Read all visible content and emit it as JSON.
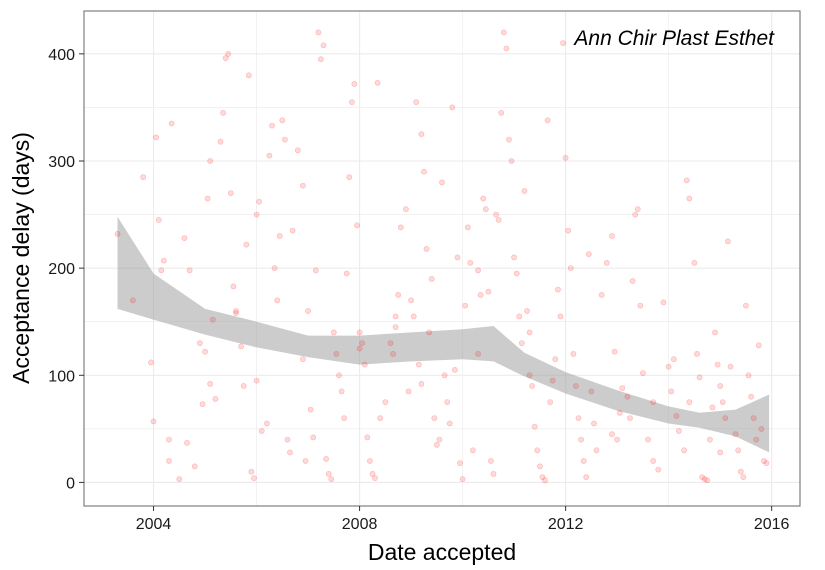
{
  "chart_data": {
    "type": "scatter",
    "title": "",
    "xlabel": "Date accepted",
    "ylabel": "Acceptance delay (days)",
    "annotation": "Ann Chir Plast Esthet",
    "xlim": [
      2002.65,
      2016.55
    ],
    "ylim": [
      -22,
      440
    ],
    "x_ticks": [
      2004,
      2008,
      2012,
      2016
    ],
    "x_tick_labels": [
      "2004",
      "2008",
      "2012",
      "2016"
    ],
    "y_ticks": [
      0,
      100,
      200,
      300,
      400
    ],
    "y_tick_labels": [
      "0",
      "100",
      "200",
      "300",
      "400"
    ],
    "grid": true,
    "colors": {
      "points": "#ff0000",
      "band": "#999999",
      "panel_border": "#7f7f7f",
      "grid": "#ebebeb"
    },
    "point_opacity": 0.15,
    "smooth_band": {
      "x": [
        2003.3,
        2004.0,
        2005.0,
        2006.0,
        2007.0,
        2008.0,
        2009.0,
        2010.0,
        2010.6,
        2011.2,
        2012.0,
        2013.0,
        2014.0,
        2014.6,
        2015.3,
        2015.95
      ],
      "lower": [
        162,
        152,
        138,
        126,
        117,
        110,
        113,
        115,
        113,
        99,
        83,
        67,
        55,
        51,
        43,
        28
      ],
      "upper": [
        248,
        195,
        162,
        150,
        137,
        137,
        140,
        143,
        146,
        121,
        103,
        86,
        71,
        65,
        68,
        82
      ]
    },
    "points": [
      [
        2003.3,
        232
      ],
      [
        2003.6,
        170
      ],
      [
        2003.8,
        285
      ],
      [
        2003.95,
        112
      ],
      [
        2004.0,
        57
      ],
      [
        2004.05,
        322
      ],
      [
        2004.1,
        245
      ],
      [
        2004.15,
        198
      ],
      [
        2004.2,
        207
      ],
      [
        2004.3,
        40
      ],
      [
        2004.3,
        20
      ],
      [
        2004.35,
        335
      ],
      [
        2004.5,
        3
      ],
      [
        2004.6,
        228
      ],
      [
        2004.65,
        37
      ],
      [
        2004.7,
        198
      ],
      [
        2004.8,
        15
      ],
      [
        2004.9,
        130
      ],
      [
        2004.95,
        73
      ],
      [
        2005.0,
        122
      ],
      [
        2005.05,
        265
      ],
      [
        2005.1,
        300
      ],
      [
        2005.15,
        152
      ],
      [
        2005.2,
        78
      ],
      [
        2005.3,
        318
      ],
      [
        2005.35,
        345
      ],
      [
        2005.4,
        396
      ],
      [
        2005.45,
        400
      ],
      [
        2005.5,
        270
      ],
      [
        2005.55,
        183
      ],
      [
        2005.6,
        160
      ],
      [
        2005.7,
        127
      ],
      [
        2005.75,
        90
      ],
      [
        2005.8,
        222
      ],
      [
        2005.85,
        380
      ],
      [
        2005.9,
        10
      ],
      [
        2005.95,
        4
      ],
      [
        2006.0,
        250
      ],
      [
        2006.05,
        262
      ],
      [
        2006.1,
        48
      ],
      [
        2006.2,
        55
      ],
      [
        2006.25,
        305
      ],
      [
        2006.3,
        333
      ],
      [
        2006.35,
        200
      ],
      [
        2006.4,
        170
      ],
      [
        2006.45,
        230
      ],
      [
        2006.5,
        338
      ],
      [
        2006.55,
        320
      ],
      [
        2006.6,
        40
      ],
      [
        2006.65,
        28
      ],
      [
        2006.7,
        235
      ],
      [
        2006.8,
        310
      ],
      [
        2006.9,
        277
      ],
      [
        2006.95,
        20
      ],
      [
        2007.0,
        160
      ],
      [
        2007.05,
        68
      ],
      [
        2007.1,
        42
      ],
      [
        2007.15,
        198
      ],
      [
        2007.2,
        420
      ],
      [
        2007.25,
        395
      ],
      [
        2007.3,
        408
      ],
      [
        2007.35,
        22
      ],
      [
        2007.4,
        8
      ],
      [
        2007.45,
        3
      ],
      [
        2007.5,
        140
      ],
      [
        2007.55,
        120
      ],
      [
        2007.6,
        100
      ],
      [
        2007.65,
        85
      ],
      [
        2007.7,
        60
      ],
      [
        2007.75,
        195
      ],
      [
        2007.8,
        285
      ],
      [
        2007.85,
        355
      ],
      [
        2007.9,
        372
      ],
      [
        2007.95,
        240
      ],
      [
        2008.0,
        140
      ],
      [
        2008.05,
        130
      ],
      [
        2008.1,
        110
      ],
      [
        2008.15,
        42
      ],
      [
        2008.2,
        20
      ],
      [
        2008.25,
        8
      ],
      [
        2008.3,
        4
      ],
      [
        2008.35,
        373
      ],
      [
        2008.4,
        60
      ],
      [
        2008.5,
        75
      ],
      [
        2008.6,
        130
      ],
      [
        2008.65,
        120
      ],
      [
        2008.7,
        155
      ],
      [
        2008.75,
        175
      ],
      [
        2008.8,
        238
      ],
      [
        2008.9,
        255
      ],
      [
        2008.95,
        85
      ],
      [
        2009.0,
        170
      ],
      [
        2009.05,
        155
      ],
      [
        2009.1,
        355
      ],
      [
        2009.15,
        110
      ],
      [
        2009.2,
        325
      ],
      [
        2009.25,
        290
      ],
      [
        2009.3,
        218
      ],
      [
        2009.35,
        140
      ],
      [
        2009.4,
        190
      ],
      [
        2009.45,
        60
      ],
      [
        2009.5,
        35
      ],
      [
        2009.55,
        40
      ],
      [
        2009.6,
        280
      ],
      [
        2009.65,
        100
      ],
      [
        2009.7,
        75
      ],
      [
        2009.75,
        55
      ],
      [
        2009.8,
        350
      ],
      [
        2009.85,
        105
      ],
      [
        2009.9,
        210
      ],
      [
        2009.95,
        18
      ],
      [
        2010.0,
        3
      ],
      [
        2010.05,
        165
      ],
      [
        2010.1,
        238
      ],
      [
        2010.15,
        205
      ],
      [
        2010.2,
        30
      ],
      [
        2010.3,
        198
      ],
      [
        2010.35,
        175
      ],
      [
        2010.4,
        265
      ],
      [
        2010.45,
        255
      ],
      [
        2010.5,
        178
      ],
      [
        2010.55,
        20
      ],
      [
        2010.6,
        8
      ],
      [
        2010.65,
        250
      ],
      [
        2010.7,
        245
      ],
      [
        2010.75,
        345
      ],
      [
        2010.8,
        420
      ],
      [
        2010.85,
        405
      ],
      [
        2010.9,
        320
      ],
      [
        2010.95,
        300
      ],
      [
        2011.0,
        210
      ],
      [
        2011.05,
        195
      ],
      [
        2011.1,
        155
      ],
      [
        2011.15,
        130
      ],
      [
        2011.2,
        272
      ],
      [
        2011.25,
        160
      ],
      [
        2011.3,
        100
      ],
      [
        2011.35,
        90
      ],
      [
        2011.4,
        52
      ],
      [
        2011.45,
        30
      ],
      [
        2011.5,
        15
      ],
      [
        2011.55,
        5
      ],
      [
        2011.6,
        2
      ],
      [
        2011.65,
        338
      ],
      [
        2011.7,
        75
      ],
      [
        2011.75,
        95
      ],
      [
        2011.8,
        115
      ],
      [
        2011.85,
        180
      ],
      [
        2011.9,
        155
      ],
      [
        2011.95,
        410
      ],
      [
        2012.0,
        303
      ],
      [
        2012.05,
        235
      ],
      [
        2012.1,
        200
      ],
      [
        2012.15,
        120
      ],
      [
        2012.2,
        90
      ],
      [
        2012.25,
        60
      ],
      [
        2012.3,
        40
      ],
      [
        2012.35,
        20
      ],
      [
        2012.4,
        5
      ],
      [
        2012.45,
        213
      ],
      [
        2012.5,
        85
      ],
      [
        2012.55,
        55
      ],
      [
        2012.6,
        30
      ],
      [
        2012.7,
        175
      ],
      [
        2012.8,
        205
      ],
      [
        2012.9,
        230
      ],
      [
        2012.95,
        122
      ],
      [
        2013.0,
        40
      ],
      [
        2013.05,
        65
      ],
      [
        2013.1,
        88
      ],
      [
        2013.2,
        80
      ],
      [
        2013.25,
        60
      ],
      [
        2013.3,
        188
      ],
      [
        2013.35,
        250
      ],
      [
        2013.4,
        255
      ],
      [
        2013.45,
        165
      ],
      [
        2013.5,
        102
      ],
      [
        2013.6,
        40
      ],
      [
        2013.7,
        20
      ],
      [
        2013.8,
        12
      ],
      [
        2013.9,
        168
      ],
      [
        2014.0,
        108
      ],
      [
        2014.05,
        85
      ],
      [
        2014.1,
        115
      ],
      [
        2014.15,
        62
      ],
      [
        2014.2,
        48
      ],
      [
        2014.3,
        30
      ],
      [
        2014.35,
        282
      ],
      [
        2014.4,
        265
      ],
      [
        2014.5,
        205
      ],
      [
        2014.55,
        120
      ],
      [
        2014.6,
        98
      ],
      [
        2014.65,
        5
      ],
      [
        2014.7,
        3
      ],
      [
        2014.75,
        2
      ],
      [
        2014.8,
        40
      ],
      [
        2014.85,
        70
      ],
      [
        2014.9,
        140
      ],
      [
        2014.95,
        110
      ],
      [
        2015.0,
        90
      ],
      [
        2015.05,
        75
      ],
      [
        2015.1,
        60
      ],
      [
        2015.15,
        225
      ],
      [
        2015.2,
        108
      ],
      [
        2015.3,
        45
      ],
      [
        2015.35,
        30
      ],
      [
        2015.4,
        10
      ],
      [
        2015.45,
        5
      ],
      [
        2015.5,
        165
      ],
      [
        2015.55,
        100
      ],
      [
        2015.6,
        80
      ],
      [
        2015.65,
        60
      ],
      [
        2015.7,
        40
      ],
      [
        2015.75,
        128
      ],
      [
        2015.8,
        50
      ],
      [
        2015.85,
        20
      ],
      [
        2015.9,
        18
      ],
      [
        2005.1,
        92
      ],
      [
        2006.0,
        95
      ],
      [
        2006.9,
        115
      ],
      [
        2008.7,
        145
      ],
      [
        2010.3,
        120
      ],
      [
        2011.3,
        140
      ],
      [
        2013.7,
        75
      ],
      [
        2014.4,
        75
      ],
      [
        2015.0,
        28
      ],
      [
        2012.9,
        45
      ],
      [
        2009.2,
        92
      ],
      [
        2008.0,
        125
      ],
      [
        2005.6,
        158
      ]
    ]
  }
}
